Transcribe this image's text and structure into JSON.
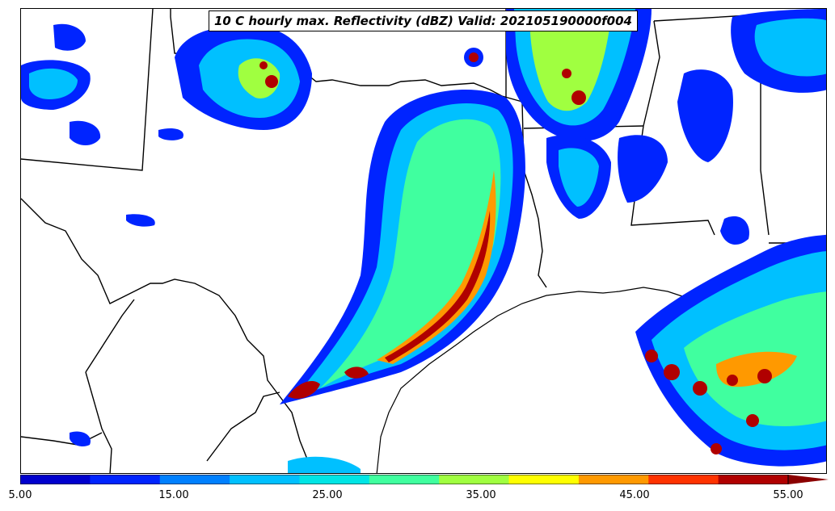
{
  "title": "10 C hourly max. Reflectivity (dBZ) Valid: 202105190000f004",
  "colorbar": {
    "levels": [
      5,
      10,
      15,
      20,
      25,
      30,
      35,
      40,
      45,
      50,
      55
    ],
    "colors": [
      "#0000cd",
      "#0024ff",
      "#0080ff",
      "#00c0ff",
      "#00e5e5",
      "#40ff9f",
      "#a0ff40",
      "#ffff00",
      "#ff9900",
      "#ff3300",
      "#b00000"
    ],
    "extend_color": "#8b0000",
    "tick_labels": [
      "5.00",
      "15.00",
      "25.00",
      "35.00",
      "45.00",
      "55.00"
    ]
  },
  "legend_colors": {
    "land": "#ffffff",
    "borders": "#000000"
  }
}
